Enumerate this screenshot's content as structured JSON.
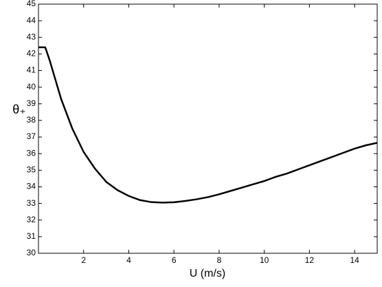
{
  "chart_data": {
    "type": "line",
    "xlabel": "U (m/s)",
    "ylabel": "θ₊",
    "x": [
      0,
      0.3,
      0.5,
      1,
      1.5,
      2,
      2.5,
      3,
      3.5,
      4,
      4.5,
      5,
      5.5,
      6,
      6.5,
      7,
      7.5,
      8,
      8.5,
      9,
      9.5,
      10,
      10.5,
      11,
      11.5,
      12,
      12.5,
      13,
      13.5,
      14,
      14.5,
      15
    ],
    "series": [
      {
        "color": "#000000",
        "values": [
          42.4,
          42.4,
          41.6,
          39.3,
          37.5,
          36.1,
          35.1,
          34.3,
          33.8,
          33.45,
          33.2,
          33.08,
          33.05,
          33.07,
          33.15,
          33.25,
          33.38,
          33.55,
          33.75,
          33.95,
          34.15,
          34.35,
          34.6,
          34.8,
          35.05,
          35.3,
          35.55,
          35.8,
          36.05,
          36.3,
          36.5,
          36.65
        ]
      }
    ],
    "xlim": [
      0,
      15
    ],
    "xticks": [
      2,
      4,
      6,
      8,
      10,
      12,
      14
    ],
    "ylim": [
      30,
      45
    ],
    "yticks": [
      30,
      31,
      32,
      33,
      34,
      35,
      36,
      37,
      38,
      39,
      40,
      41,
      42,
      43,
      44,
      45
    ],
    "grid": false
  }
}
